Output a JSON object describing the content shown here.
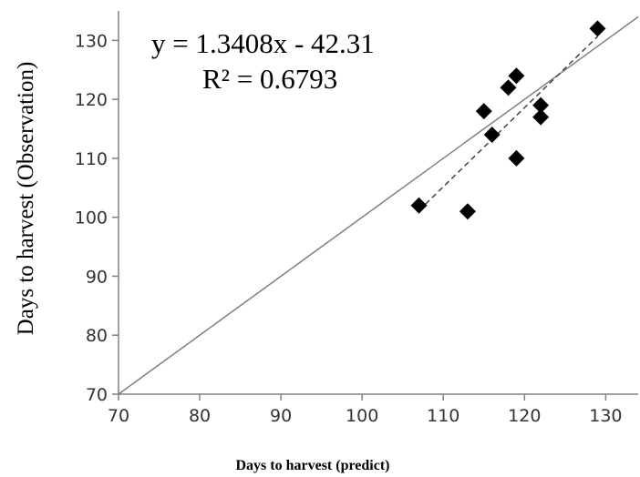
{
  "chart_data": {
    "type": "scatter",
    "title": "",
    "xlabel": "Days to harvest (predict)",
    "ylabel": "Days to harvest (Observation)",
    "xlim": [
      70,
      134
    ],
    "ylim": [
      70,
      135
    ],
    "xticks": [
      70,
      80,
      90,
      100,
      110,
      120,
      130
    ],
    "yticks": [
      70,
      80,
      90,
      100,
      110,
      120,
      130
    ],
    "grid": false,
    "series": [
      {
        "points": [
          {
            "x": 107,
            "y": 102
          },
          {
            "x": 113,
            "y": 101
          },
          {
            "x": 115,
            "y": 118
          },
          {
            "x": 116,
            "y": 114
          },
          {
            "x": 118,
            "y": 122
          },
          {
            "x": 119,
            "y": 124
          },
          {
            "x": 119,
            "y": 110
          },
          {
            "x": 122,
            "y": 119
          },
          {
            "x": 122,
            "y": 117
          },
          {
            "x": 129,
            "y": 132
          }
        ]
      }
    ],
    "reference_line": {
      "style": "solid",
      "from": [
        70,
        70
      ],
      "to": [
        134,
        134
      ]
    },
    "trendline": {
      "style": "dashed",
      "slope": 1.3408,
      "intercept": -42.31,
      "x_range": [
        107,
        129
      ]
    },
    "annotations": {
      "equation": "y = 1.3408x - 42.31",
      "r_squared": "R² = 0.6793"
    }
  }
}
